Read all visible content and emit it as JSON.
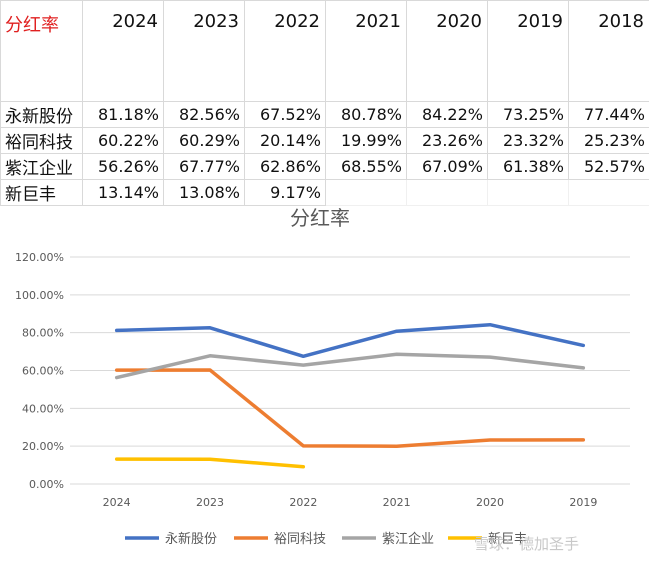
{
  "table": {
    "corner_label": "分红率",
    "years": [
      "2024",
      "2023",
      "2022",
      "2021",
      "2020",
      "2019",
      "2018"
    ],
    "rows": [
      {
        "name": "永新股份",
        "values": [
          "81.18%",
          "82.56%",
          "67.52%",
          "80.78%",
          "84.22%",
          "73.25%",
          "77.44%"
        ]
      },
      {
        "name": "裕同科技",
        "values": [
          "60.22%",
          "60.29%",
          "20.14%",
          "19.99%",
          "23.26%",
          "23.32%",
          "25.23%"
        ]
      },
      {
        "name": "紫江企业",
        "values": [
          "56.26%",
          "67.77%",
          "62.86%",
          "68.55%",
          "67.09%",
          "61.38%",
          "52.57%"
        ]
      },
      {
        "name": "新巨丰",
        "values": [
          "13.14%",
          "13.08%",
          "9.17%",
          "",
          "",
          "",
          ""
        ]
      }
    ]
  },
  "chart_data": {
    "type": "line",
    "title": "分红率",
    "categories": [
      "2024",
      "2023",
      "2022",
      "2021",
      "2020",
      "2019"
    ],
    "y_tick_labels": [
      "0.00%",
      "20.00%",
      "40.00%",
      "60.00%",
      "80.00%",
      "100.00%",
      "120.00%"
    ],
    "ylim": [
      0,
      120
    ],
    "grid": true,
    "legend_position": "bottom",
    "series": [
      {
        "name": "永新股份",
        "color": "#4472c4",
        "values": [
          81.18,
          82.56,
          67.52,
          80.78,
          84.22,
          73.25
        ]
      },
      {
        "name": "裕同科技",
        "color": "#ed7d31",
        "values": [
          60.22,
          60.29,
          20.14,
          19.99,
          23.26,
          23.32
        ]
      },
      {
        "name": "紫江企业",
        "color": "#a5a5a5",
        "values": [
          56.26,
          67.77,
          62.86,
          68.55,
          67.09,
          61.38
        ]
      },
      {
        "name": "新巨丰",
        "color": "#ffc000",
        "values": [
          13.14,
          13.08,
          9.17,
          null,
          null,
          null
        ]
      }
    ]
  },
  "watermark": "雪球：德加圣手"
}
